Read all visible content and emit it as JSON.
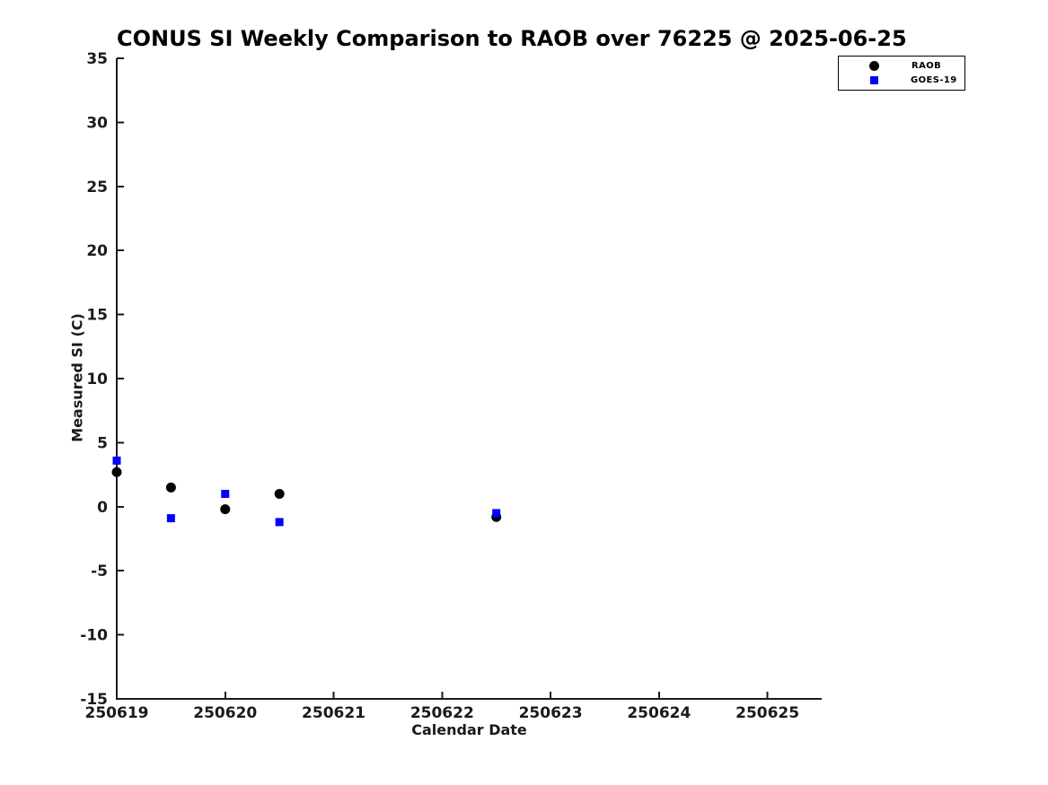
{
  "chart_data": {
    "type": "scatter",
    "title": "CONUS SI Weekly Comparison to RAOB over 76225 @ 2025-06-25",
    "xlabel": "Calendar Date",
    "ylabel": "Measured SI (C)",
    "xlim": [
      250619,
      250625.5
    ],
    "ylim": [
      -15,
      35
    ],
    "x_ticks": [
      250619,
      250620,
      250621,
      250622,
      250623,
      250624,
      250625
    ],
    "x_tick_labels": [
      "250619",
      "250620",
      "250621",
      "250622",
      "250623",
      "250624",
      "250625"
    ],
    "y_ticks": [
      -15,
      -10,
      -5,
      0,
      5,
      10,
      15,
      20,
      25,
      30,
      35
    ],
    "y_tick_labels": [
      "-15",
      "-10",
      "-5",
      "0",
      "5",
      "10",
      "15",
      "20",
      "25",
      "30",
      "35"
    ],
    "grid": false,
    "legend_position": "top-right",
    "series": [
      {
        "name": "RAOB",
        "marker": "circle",
        "color": "#000000",
        "points": [
          {
            "x": 250619.0,
            "y": 2.7
          },
          {
            "x": 250619.5,
            "y": 1.5
          },
          {
            "x": 250620.0,
            "y": -0.2
          },
          {
            "x": 250620.5,
            "y": 1.0
          },
          {
            "x": 250622.5,
            "y": -0.8
          }
        ]
      },
      {
        "name": "GOES-19",
        "marker": "square",
        "color": "#0000ff",
        "points": [
          {
            "x": 250619.0,
            "y": 3.6
          },
          {
            "x": 250619.5,
            "y": -0.9
          },
          {
            "x": 250620.0,
            "y": 1.0
          },
          {
            "x": 250620.5,
            "y": -1.2
          },
          {
            "x": 250622.5,
            "y": -0.5
          }
        ]
      }
    ]
  },
  "colors": {
    "axis": "#1a1a1a",
    "tick_label": "#1a1a1a",
    "title": "#000000",
    "background": "#ffffff"
  }
}
